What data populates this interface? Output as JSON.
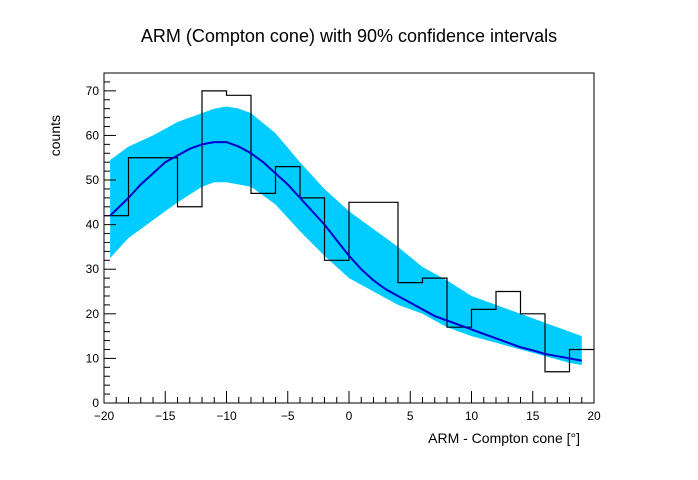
{
  "chart_data": {
    "type": "line",
    "title": "ARM (Compton cone) with 90% confidence intervals",
    "xlabel": "ARM - Compton cone [°]",
    "ylabel": "counts",
    "xlim": [
      -20,
      20
    ],
    "ylim": [
      0,
      74
    ],
    "xticks": [
      -20,
      -15,
      -10,
      -5,
      0,
      5,
      10,
      15,
      20
    ],
    "yticks": [
      0,
      10,
      20,
      30,
      40,
      50,
      60,
      70
    ],
    "grid": false,
    "legend": "none",
    "colors": {
      "histogram": "#000000",
      "fit": "#0000cc",
      "band": "#00ccff"
    },
    "series": [
      {
        "type": "histogram",
        "bin_edges": [
          -20,
          -18,
          -16,
          -14,
          -12,
          -10,
          -8,
          -6,
          -4,
          -2,
          0,
          2,
          4,
          6,
          8,
          10,
          12,
          14,
          16,
          18,
          20
        ],
        "values": [
          42,
          55,
          55,
          44,
          70,
          69,
          47,
          53,
          46,
          32,
          45,
          45,
          27,
          28,
          17,
          21,
          25,
          20,
          7,
          12
        ]
      },
      {
        "type": "line",
        "x": [
          -19.5,
          -18,
          -17,
          -16,
          -15,
          -14,
          -13,
          -12,
          -11,
          -10,
          -9,
          -8,
          -7,
          -6,
          -5,
          -4,
          -3,
          -2,
          -1,
          0,
          1,
          2,
          3,
          4,
          5,
          6,
          7,
          8,
          9,
          10,
          11,
          12,
          13,
          14,
          15,
          16,
          17,
          18,
          19
        ],
        "y": [
          42,
          46,
          49,
          51.5,
          54,
          55.5,
          57,
          58,
          58.5,
          58.5,
          57.5,
          56,
          54,
          51.5,
          49,
          46,
          43,
          40,
          36.5,
          33,
          30,
          27.5,
          25.5,
          24,
          22.5,
          21,
          19.5,
          18.5,
          17.5,
          16.5,
          15.5,
          14.5,
          13.5,
          12.5,
          11.8,
          11,
          10.5,
          10,
          9.5
        ]
      },
      {
        "type": "band",
        "x": [
          -19.5,
          -18,
          -16,
          -14,
          -12,
          -11,
          -10,
          -9,
          -8,
          -6,
          -4,
          -2,
          0,
          2,
          4,
          6,
          8,
          10,
          12,
          14,
          16,
          18,
          19
        ],
        "upper": [
          54.5,
          57.5,
          60,
          63,
          65,
          66,
          66.5,
          66,
          65,
          60.5,
          54,
          48,
          43,
          39,
          35,
          30.5,
          27.5,
          24,
          22,
          20,
          18,
          16,
          15
        ],
        "lower": [
          32.5,
          37,
          41,
          45,
          48.5,
          49.5,
          49.5,
          49,
          48.5,
          44.5,
          38.5,
          33,
          28,
          25,
          22,
          20,
          17,
          15,
          13.5,
          12,
          10.5,
          9,
          8.5
        ]
      }
    ]
  }
}
